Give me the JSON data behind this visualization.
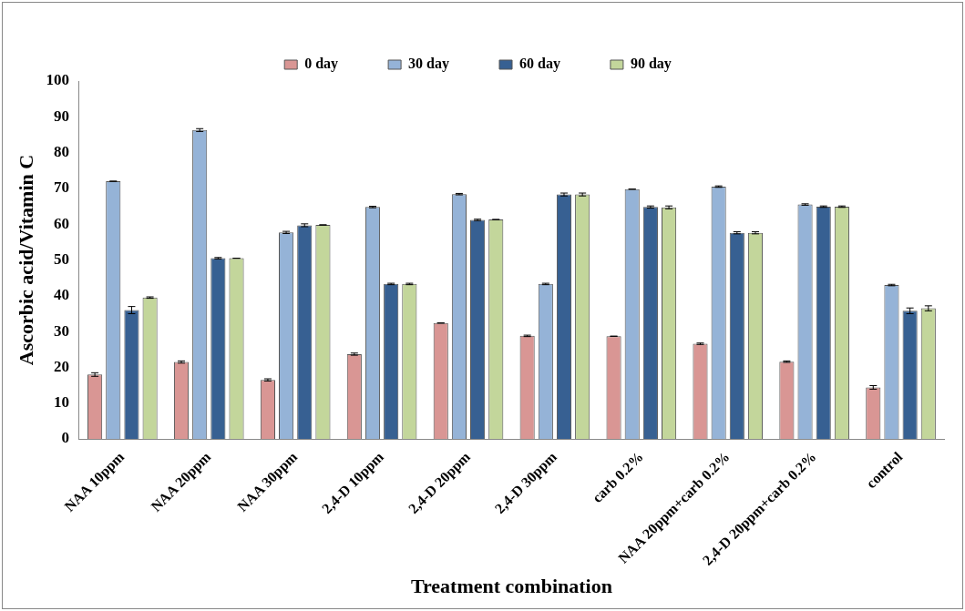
{
  "chart_data": {
    "type": "bar",
    "xlabel": "Treatment combination",
    "ylabel": "Ascorbic acid/Vitamin C",
    "categories": [
      "NAA 10ppm",
      "NAA 20ppm",
      "NAA 30ppm",
      "2,4-D 10ppm",
      "2,4-D 20ppm",
      "2,4-D 30ppm",
      "carb 0.2%",
      "NAA 20ppm+carb 0.2%",
      "2,4-D 20ppm+carb 0.2%",
      "control"
    ],
    "series": [
      {
        "name": "0 day",
        "color": "#d99694",
        "values": [
          18,
          21.5,
          16.5,
          23.7,
          32.4,
          28.8,
          28.7,
          26.6,
          21.6,
          14.4
        ],
        "errors": [
          0.5,
          0.3,
          0.3,
          0.3,
          0,
          0.2,
          0,
          0.2,
          0.2,
          0.5
        ]
      },
      {
        "name": "30 day",
        "color": "#95b3d7",
        "values": [
          72,
          86.3,
          57.7,
          64.8,
          68.4,
          43.3,
          69.8,
          70.5,
          65.5,
          43
        ],
        "errors": [
          0,
          0.4,
          0.3,
          0.2,
          0.2,
          0.2,
          0,
          0.2,
          0.2,
          0.2
        ]
      },
      {
        "name": "60 day",
        "color": "#376092",
        "values": [
          36,
          50.5,
          59.7,
          43.3,
          61.2,
          68.3,
          64.8,
          57.6,
          64.9,
          35.8
        ],
        "errors": [
          1,
          0.2,
          0.4,
          0.2,
          0.2,
          0.4,
          0.3,
          0.3,
          0.2,
          0.8
        ]
      },
      {
        "name": "90 day",
        "color": "#c3d69b",
        "values": [
          39.5,
          50.5,
          59.8,
          43.3,
          61.3,
          68.3,
          64.7,
          57.6,
          64.9,
          36.5
        ],
        "errors": [
          0.2,
          0,
          0,
          0.2,
          0,
          0.4,
          0.4,
          0.3,
          0.2,
          0.7
        ]
      }
    ],
    "ylim": [
      0,
      100
    ],
    "yticks": [
      0,
      10,
      20,
      30,
      40,
      50,
      60,
      70,
      80,
      90,
      100
    ],
    "grid": false,
    "legend": "top"
  }
}
